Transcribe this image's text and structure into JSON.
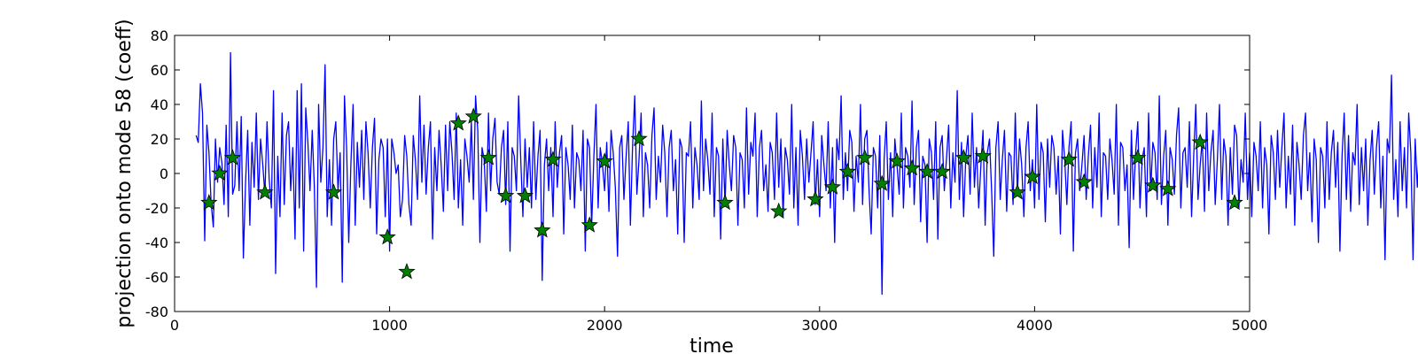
{
  "chart_data": {
    "type": "line",
    "title": "",
    "xlabel": "time",
    "ylabel": "projection onto mode 58 (coeff)",
    "xlim": [
      0,
      5000
    ],
    "ylim": [
      -80,
      80
    ],
    "grid": false,
    "x_ticks": [
      0,
      1000,
      2000,
      3000,
      4000,
      5000
    ],
    "y_ticks": [
      -80,
      -60,
      -40,
      -20,
      0,
      20,
      40,
      60,
      80
    ],
    "series": [
      {
        "kind": "line",
        "color": "#0000ff",
        "x_start": 100,
        "x_end": 5000,
        "x_step": 10,
        "values": [
          22,
          18,
          52,
          35,
          -39,
          28,
          12,
          -17,
          -31,
          20,
          -5,
          15,
          6,
          -18,
          28,
          -25,
          70,
          -12,
          -7,
          30,
          -10,
          33,
          -49,
          -5,
          25,
          -30,
          18,
          -8,
          35,
          -15,
          20,
          5,
          -12,
          30,
          -3,
          -20,
          48,
          -58,
          10,
          -25,
          35,
          -18,
          22,
          30,
          -10,
          15,
          -38,
          48,
          -20,
          52,
          -45,
          38,
          18,
          -10,
          25,
          -8,
          -66,
          40,
          -5,
          15,
          63,
          -25,
          8,
          -30,
          20,
          30,
          -10,
          12,
          -63,
          45,
          15,
          -40,
          5,
          40,
          -30,
          18,
          -8,
          25,
          -15,
          30,
          12,
          -20,
          15,
          32,
          -35,
          8,
          20,
          15,
          -25,
          20,
          -45,
          20,
          12,
          0,
          5,
          -25,
          -15,
          22,
          10,
          -18,
          -30,
          22,
          8,
          -15,
          45,
          -5,
          28,
          -12,
          15,
          30,
          -38,
          15,
          -10,
          25,
          5,
          -22,
          28,
          -10,
          30,
          12,
          -15,
          35,
          -20,
          8,
          -30,
          20,
          10,
          -5,
          30,
          -15,
          45,
          25,
          -40,
          15,
          8,
          -22,
          35,
          -10,
          20,
          32,
          -5,
          -12,
          15,
          25,
          -18,
          30,
          -45,
          15,
          10,
          -10,
          45,
          8,
          -25,
          20,
          -8,
          15,
          -20,
          30,
          -15,
          10,
          25,
          -62,
          5,
          20,
          -10,
          15,
          -25,
          30,
          -8,
          12,
          22,
          -35,
          15,
          5,
          -15,
          28,
          -20,
          12,
          8,
          -10,
          25,
          -45,
          20,
          15,
          -30,
          10,
          40,
          -20,
          15,
          5,
          -10,
          18,
          -22,
          25,
          12,
          -8,
          -48,
          15,
          22,
          -15,
          10,
          30,
          -30,
          15,
          45,
          -12,
          8,
          35,
          -25,
          12,
          5,
          -20,
          22,
          38,
          -15,
          10,
          -5,
          28,
          12,
          -25,
          15,
          25,
          -10,
          8,
          -35,
          20,
          15,
          -40,
          12,
          10,
          30,
          -20,
          15,
          5,
          -15,
          42,
          -10,
          20,
          8,
          -12,
          35,
          -25,
          15,
          10,
          -38,
          20,
          -18,
          25,
          5,
          -10,
          22,
          15,
          -30,
          12,
          8,
          -20,
          38,
          -12,
          18,
          10,
          35,
          -25,
          15,
          25,
          -10,
          5,
          -22,
          18,
          12,
          -15,
          35,
          -8,
          20,
          -25,
          15,
          8,
          -12,
          40,
          -20,
          15,
          -30,
          25,
          10,
          -15,
          20,
          -5,
          12,
          30,
          -18,
          8,
          -25,
          22,
          5,
          -10,
          30,
          -20,
          15,
          -40,
          20,
          8,
          45,
          -15,
          12,
          -10,
          25,
          18,
          -22,
          10,
          -5,
          40,
          -18,
          20,
          25,
          -10,
          -35,
          15,
          10,
          -20,
          22,
          -70,
          8,
          30,
          -15,
          12,
          -25,
          20,
          5,
          -12,
          35,
          -20,
          15,
          10,
          -8,
          42,
          -18,
          15,
          25,
          -28,
          10,
          5,
          -40,
          20,
          12,
          -15,
          30,
          -38,
          15,
          22,
          -10,
          8,
          28,
          -20,
          12,
          -5,
          48,
          -15,
          18,
          -25,
          10,
          22,
          -12,
          35,
          -8,
          15,
          -20,
          5,
          25,
          -30,
          12,
          20,
          -10,
          -48,
          15,
          30,
          -15,
          8,
          25,
          -22,
          12,
          10,
          -18,
          35,
          -12,
          20,
          5,
          -25,
          15,
          30,
          -10,
          8,
          -20,
          40,
          -15,
          18,
          12,
          -28,
          20,
          -8,
          22,
          15,
          -12,
          10,
          -35,
          25,
          8,
          -18,
          15,
          30,
          -45,
          12,
          20,
          -10,
          5,
          22,
          -15,
          10,
          28,
          -20,
          15,
          -8,
          35,
          -25,
          12,
          10,
          -15,
          20,
          8,
          -12,
          40,
          -30,
          18,
          15,
          -10,
          5,
          -43,
          25,
          -15,
          12,
          30,
          -20,
          8,
          15,
          -25,
          35,
          -10,
          18,
          12,
          -15,
          45,
          -18,
          10,
          25,
          -30,
          15,
          8,
          -12,
          22,
          38,
          -20,
          12,
          15,
          -8,
          30,
          -25,
          10,
          40,
          -15,
          5,
          20,
          -22,
          35,
          -10,
          12,
          25,
          -18,
          8,
          40,
          -15,
          20,
          10,
          -30,
          15,
          -12,
          28,
          22,
          -20,
          8,
          -5,
          35,
          -15,
          12,
          -25,
          18,
          10,
          -10,
          30,
          -20,
          15,
          5,
          -35,
          22,
          12,
          -15,
          25,
          -8,
          15,
          35,
          -20,
          10,
          -12,
          28,
          -30,
          18,
          5,
          -15,
          22,
          35,
          -10,
          12,
          -28,
          20,
          8,
          -40,
          15,
          10,
          -20,
          30,
          -15,
          12,
          25,
          -8,
          18,
          -45,
          10,
          35,
          -15,
          22,
          -22,
          12,
          5,
          40,
          -18,
          15,
          -10,
          20,
          -30,
          8,
          25,
          -12,
          15,
          30,
          -20,
          10,
          -50,
          20,
          12,
          57,
          -15,
          8,
          -25,
          30,
          -10,
          15,
          -20,
          35,
          12,
          -50,
          20,
          -8,
          15,
          25,
          -15,
          10,
          30,
          -35,
          20,
          12,
          -10,
          38,
          -20,
          15,
          5,
          -25,
          28,
          10,
          -15,
          20,
          -12,
          35,
          -20,
          8,
          15,
          40,
          -25,
          12,
          -10,
          22,
          18,
          -30,
          10,
          35,
          -15,
          8,
          25,
          -20,
          12,
          45,
          -10,
          15,
          -25,
          20,
          -5,
          30,
          12,
          -15,
          18,
          -55,
          10,
          25,
          -20,
          15,
          35,
          -10,
          8,
          -22,
          28,
          12,
          -15,
          60,
          -25,
          15,
          10,
          -18,
          30,
          -8,
          22,
          -15,
          12,
          35,
          -20,
          10,
          28,
          -12,
          -35,
          15,
          30,
          5,
          -20,
          22,
          12,
          -10,
          25,
          18,
          -15,
          10,
          20
        ]
      },
      {
        "kind": "scatter",
        "marker": "star",
        "color": "#008000",
        "x": [
          160,
          210,
          270,
          420,
          740,
          990,
          1080,
          1320,
          1390,
          1460,
          1540,
          1630,
          1760,
          1710,
          1930,
          2000,
          2160,
          2560,
          2810,
          2980,
          3060,
          3130,
          3210,
          3290,
          3360,
          3430,
          3500,
          3570,
          3670,
          3760,
          3920,
          3990,
          4160,
          4230,
          4480,
          4550,
          4620,
          4770,
          4930
        ],
        "y": [
          -17,
          0,
          9,
          -11,
          -11,
          -37,
          -57,
          29,
          33,
          9,
          -13,
          -13,
          8,
          -33,
          -30,
          7,
          20,
          -17,
          -22,
          -15,
          -8,
          1,
          9,
          -6,
          7,
          3,
          1,
          1,
          9,
          10,
          -11,
          -2,
          8,
          -5,
          9,
          -7,
          -9,
          18,
          -17
        ]
      }
    ]
  }
}
